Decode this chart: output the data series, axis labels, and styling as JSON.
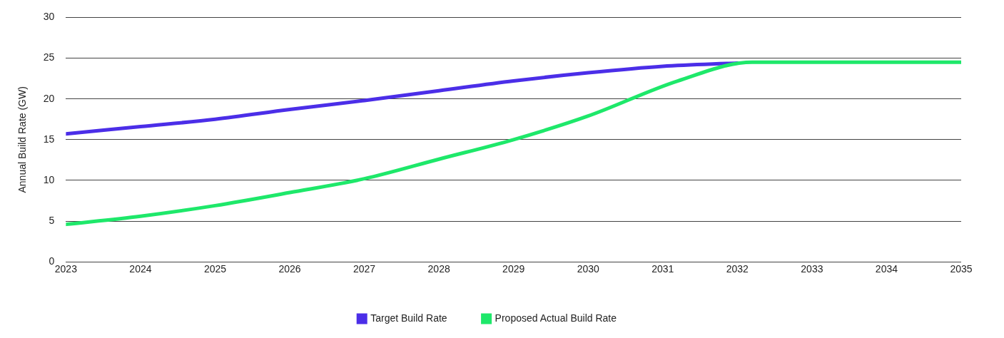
{
  "chart_data": {
    "type": "line",
    "ylabel": "Annual Build Rate (GW)",
    "xlim": [
      2023,
      2035
    ],
    "xticks": [
      2023,
      2024,
      2025,
      2026,
      2027,
      2028,
      2029,
      2030,
      2031,
      2032,
      2033,
      2034,
      2035
    ],
    "ylim": [
      0,
      30
    ],
    "yticks": [
      0,
      5,
      10,
      15,
      20,
      25,
      30
    ],
    "grid": "y",
    "legend": "bottom",
    "marker": "none",
    "line_style": "solid",
    "series": [
      {
        "name": "Target Build Rate",
        "color": "#4b2ee8",
        "x": [
          2023,
          2024,
          2025,
          2026,
          2027,
          2028,
          2029,
          2030,
          2031,
          2032
        ],
        "values": [
          15.7,
          16.6,
          17.5,
          18.7,
          19.8,
          21.0,
          22.2,
          23.2,
          24.0,
          24.4
        ]
      },
      {
        "name": "Proposed Actual Build Rate",
        "color": "#1ee86a",
        "x": [
          2023,
          2024,
          2025,
          2026,
          2027,
          2028,
          2029,
          2030,
          2031.2,
          2032.2,
          2033,
          2034,
          2035
        ],
        "values": [
          4.6,
          5.6,
          6.9,
          8.5,
          10.2,
          12.6,
          15.0,
          17.9,
          22.2,
          24.5,
          24.5,
          24.5,
          24.5
        ]
      }
    ]
  }
}
